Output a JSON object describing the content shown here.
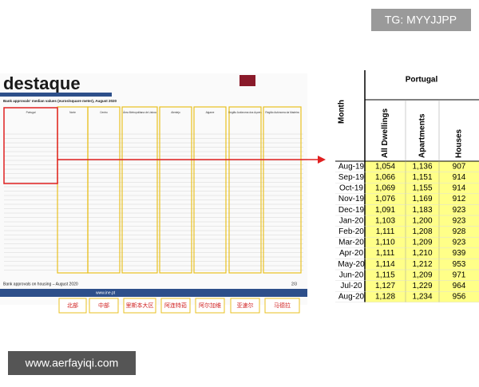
{
  "watermarks": {
    "top": "TG: MYYJJPP",
    "bottom": "www.aerfayiqi.com"
  },
  "document": {
    "logo": "destaque",
    "subtitle": "Bank approvals' median values (euros/square meter), August 2020",
    "regions": [
      "Portugal",
      "Norte",
      "Centro",
      "Área Metropolitana de Lisboa",
      "Alentejo",
      "Algarve",
      "Região Autónoma dos Açores",
      "Região Autónoma da Madeira"
    ],
    "footer": "Bank approvals on housing – August 2020",
    "page": "2/3",
    "site": "www.ine.pt"
  },
  "region_labels": [
    "北部",
    "中部",
    "里斯本大区",
    "阿连特茹",
    "阿尔加维",
    "亚速尔",
    "马德拉"
  ],
  "table": {
    "title": "Portugal",
    "month_header": "Month",
    "columns": [
      "All Dwellings",
      "Apartments",
      "Houses"
    ],
    "rows": [
      [
        "Aug-19",
        "1,054",
        "1,136",
        "907"
      ],
      [
        "Sep-19",
        "1,066",
        "1,151",
        "914"
      ],
      [
        "Oct-19",
        "1,069",
        "1,155",
        "914"
      ],
      [
        "Nov-19",
        "1,076",
        "1,169",
        "912"
      ],
      [
        "Dec-19",
        "1,091",
        "1,183",
        "923"
      ],
      [
        "Jan-20",
        "1,103",
        "1,200",
        "923"
      ],
      [
        "Feb-20",
        "1,111",
        "1,208",
        "928"
      ],
      [
        "Mar-20",
        "1,110",
        "1,209",
        "923"
      ],
      [
        "Apr-20",
        "1,111",
        "1,210",
        "939"
      ],
      [
        "May-20",
        "1,114",
        "1,212",
        "953"
      ],
      [
        "Jun-20",
        "1,115",
        "1,209",
        "971"
      ],
      [
        "Jul-20",
        "1,127",
        "1,229",
        "964"
      ],
      [
        "Aug-20",
        "1,128",
        "1,234",
        "956"
      ]
    ]
  }
}
